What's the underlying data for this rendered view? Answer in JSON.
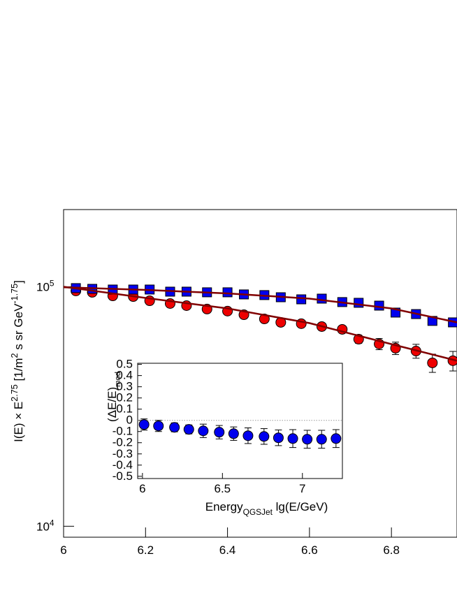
{
  "chart_data": [
    {
      "type": "scatter",
      "x": [
        6.03,
        6.07,
        6.12,
        6.17,
        6.21,
        6.26,
        6.3,
        6.35,
        6.4,
        6.44,
        6.49,
        6.53,
        6.58,
        6.63,
        6.68,
        6.72,
        6.77,
        6.81,
        6.86,
        6.9,
        6.95
      ],
      "series": [
        {
          "type": "scatter",
          "marker": "circle",
          "color": "#ee0000",
          "values": [
            96100,
            94800,
            91600,
            91000,
            87400,
            85100,
            83400,
            80700,
            79100,
            76400,
            73400,
            71000,
            70100,
            68200,
            66400,
            60400,
            57700,
            55400,
            53900,
            48100,
            49100
          ],
          "errors": [
            1300,
            1300,
            1200,
            1200,
            1200,
            1100,
            1100,
            1100,
            1100,
            1000,
            1000,
            1000,
            1400,
            1800,
            1800,
            2400,
            3100,
            3300,
            3600,
            4200,
            4600
          ]
        },
        {
          "type": "scatter",
          "marker": "square",
          "color": "#0000ee",
          "values": [
            98700,
            98000,
            97350,
            97350,
            97350,
            95400,
            95400,
            94800,
            94800,
            92900,
            92300,
            90400,
            88600,
            89200,
            86300,
            85700,
            83400,
            78000,
            76900,
            72000,
            71000
          ],
          "errors": [
            1200,
            1200,
            1200,
            1200,
            1200,
            1200,
            1200,
            1200,
            1200,
            1200,
            1200,
            1200,
            1200,
            1200,
            1300,
            1400,
            1600,
            1900,
            2300,
            2200,
            2400
          ]
        },
        {
          "type": "line",
          "color": "#800000",
          "x": [
            6.0,
            6.2,
            6.4,
            6.6,
            6.8,
            6.96
          ],
          "values": [
            100000,
            89800,
            81200,
            70500,
            57600,
            49100
          ]
        },
        {
          "type": "line",
          "color": "#800000",
          "x": [
            6.0,
            6.2,
            6.4,
            6.6,
            6.8,
            6.96
          ],
          "values": [
            99500,
            97000,
            93800,
            89200,
            81200,
            71000
          ]
        }
      ],
      "xlim": [
        6,
        6.96
      ],
      "xticks": [
        6,
        6.2,
        6.4,
        6.6,
        6.8
      ],
      "ylim": [
        9000,
        210000
      ],
      "log_y": true,
      "yticks": [
        {
          "value": 10000,
          "label": [
            "10",
            "4"
          ]
        },
        {
          "value": 100000,
          "label": [
            "10",
            "5"
          ]
        }
      ],
      "ylabel": [
        "I(E) × E",
        "2.75",
        "   [1/m",
        "2",
        " s sr GeV",
        "-1.75",
        "]"
      ]
    },
    {
      "type": "scatter",
      "x": [
        6.01,
        6.1,
        6.2,
        6.29,
        6.38,
        6.48,
        6.57,
        6.66,
        6.76,
        6.85,
        6.94,
        7.03,
        7.12,
        7.21
      ],
      "series": [
        {
          "type": "scatter",
          "marker": "circle",
          "color": "#0000ee",
          "values": [
            -0.0375,
            -0.05,
            -0.0625,
            -0.081,
            -0.094,
            -0.106,
            -0.119,
            -0.1375,
            -0.144,
            -0.156,
            -0.163,
            -0.169,
            -0.169,
            -0.163
          ],
          "errors": [
            0.05,
            0.05,
            0.04,
            0.04,
            0.06,
            0.06,
            0.06,
            0.07,
            0.07,
            0.07,
            0.08,
            0.08,
            0.08,
            0.08
          ]
        }
      ],
      "xlim": [
        5.97,
        7.25
      ],
      "xticks": [
        6,
        6.5,
        7
      ],
      "ylim": [
        -0.52,
        0.51
      ],
      "yticks": [
        -0.5,
        -0.4,
        -0.3,
        -0.2,
        -0.1,
        0,
        0.1,
        0.2,
        0.3,
        0.4,
        0.5
      ],
      "zero_line": true,
      "xlabel": [
        "Energy",
        "QGSJet",
        " lg(E/GeV)"
      ],
      "ylabel": [
        "(ΔE/E)",
        "mod"
      ]
    }
  ]
}
